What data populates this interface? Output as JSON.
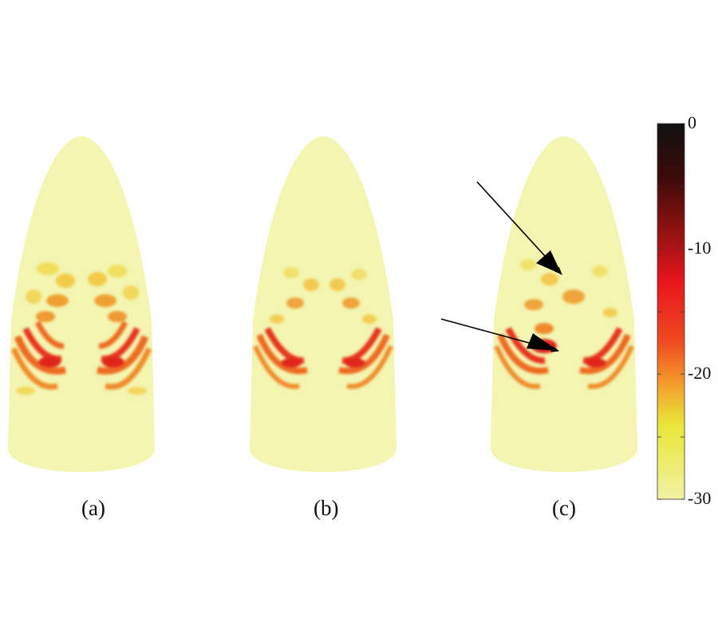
{
  "panels": [
    {
      "label": "(a)"
    },
    {
      "label": "(b)"
    },
    {
      "label": "(c)"
    }
  ],
  "colorbar": {
    "ticks": [
      "0",
      "-10",
      "-20",
      "-30"
    ],
    "tick_values": [
      0,
      -10,
      -20,
      -30
    ],
    "range": [
      -30,
      0
    ],
    "colors": [
      "#111111",
      "#3c0a0a",
      "#9a1212",
      "#e8151d",
      "#f04a1e",
      "#f4a12e",
      "#e9e636",
      "#f1f3a4"
    ]
  },
  "colors": {
    "background_body": "#f3f5b0",
    "hotspot": "#e0251c"
  }
}
